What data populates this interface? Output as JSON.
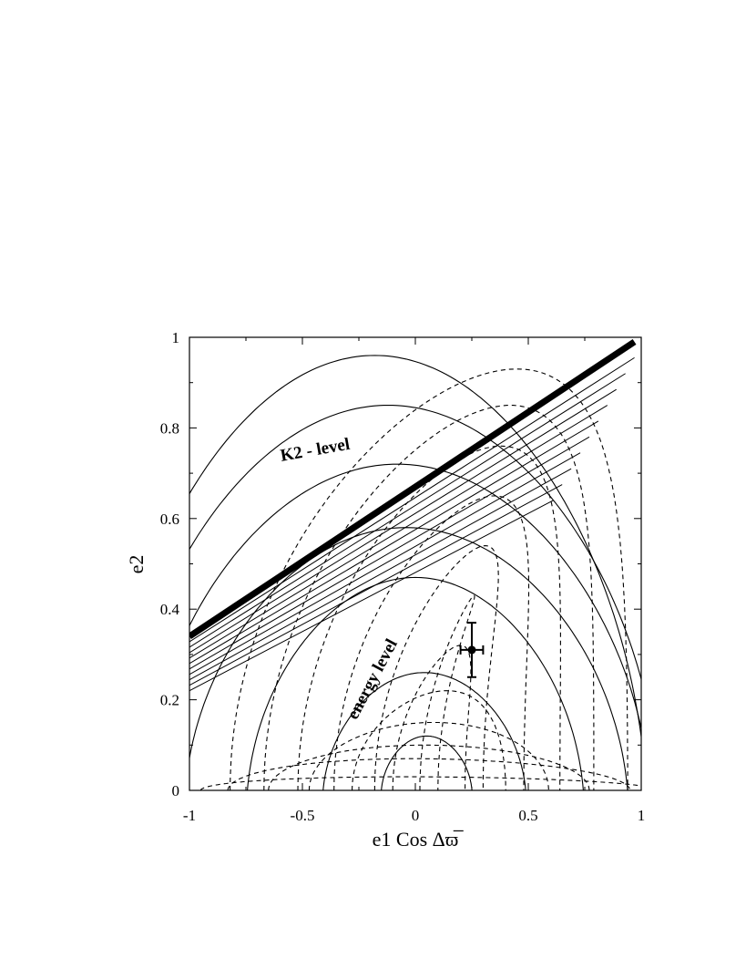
{
  "chart_data": {
    "type": "line",
    "title": "",
    "xlabel": "e1 Cos Δϖ̅",
    "ylabel": "e2",
    "xlim": [
      -1,
      1
    ],
    "ylim": [
      0,
      1
    ],
    "x_ticks": [
      "-1",
      "-0.5",
      "0",
      "0.5",
      "1"
    ],
    "y_ticks": [
      "0",
      "0.2",
      "0.4",
      "0.6",
      "0.8",
      "1"
    ],
    "grid": false,
    "legend": "none",
    "annotations": [
      {
        "text": "K2 - level",
        "x": -0.44,
        "y": 0.74,
        "angle": -10
      },
      {
        "text": "energy level",
        "x": -0.17,
        "y": 0.24,
        "angle": -62
      }
    ],
    "k2_level_line": {
      "x": [
        -1,
        0.97
      ],
      "y": [
        0.34,
        0.99
      ]
    },
    "energy_contours": {
      "center": [
        0.06,
        0.0
      ],
      "x_intercepts": [
        -0.95,
        -0.83,
        -0.65,
        -0.47,
        -0.28,
        -0.1,
        0.1,
        0.3,
        0.48,
        0.64,
        0.79,
        0.94
      ],
      "peaks": [
        [
          -0.04,
          0.03
        ],
        [
          -0.01,
          0.07
        ],
        [
          0.04,
          0.1
        ],
        [
          0.08,
          0.15
        ],
        [
          0.14,
          0.22
        ],
        [
          0.2,
          0.32
        ],
        [
          0.26,
          0.43
        ],
        [
          0.31,
          0.54
        ],
        [
          0.35,
          0.65
        ],
        [
          0.38,
          0.76
        ],
        [
          0.42,
          0.85
        ],
        [
          0.45,
          0.93
        ]
      ]
    },
    "k2_contours": {
      "peak_y": [
        0.12,
        0.26,
        0.47,
        0.58,
        0.72,
        0.85,
        0.96
      ],
      "peak_x": [
        0.05,
        0.04,
        0.0,
        -0.04,
        -0.08,
        -0.12,
        -0.18
      ],
      "half_width": [
        0.17,
        0.38,
        0.63,
        0.83,
        0.95,
        1.02,
        1.02
      ]
    },
    "data_point": {
      "x": 0.25,
      "y": 0.31,
      "x_err": 0.05,
      "y_err_plus": 0.06,
      "y_err_minus": 0.06
    }
  }
}
